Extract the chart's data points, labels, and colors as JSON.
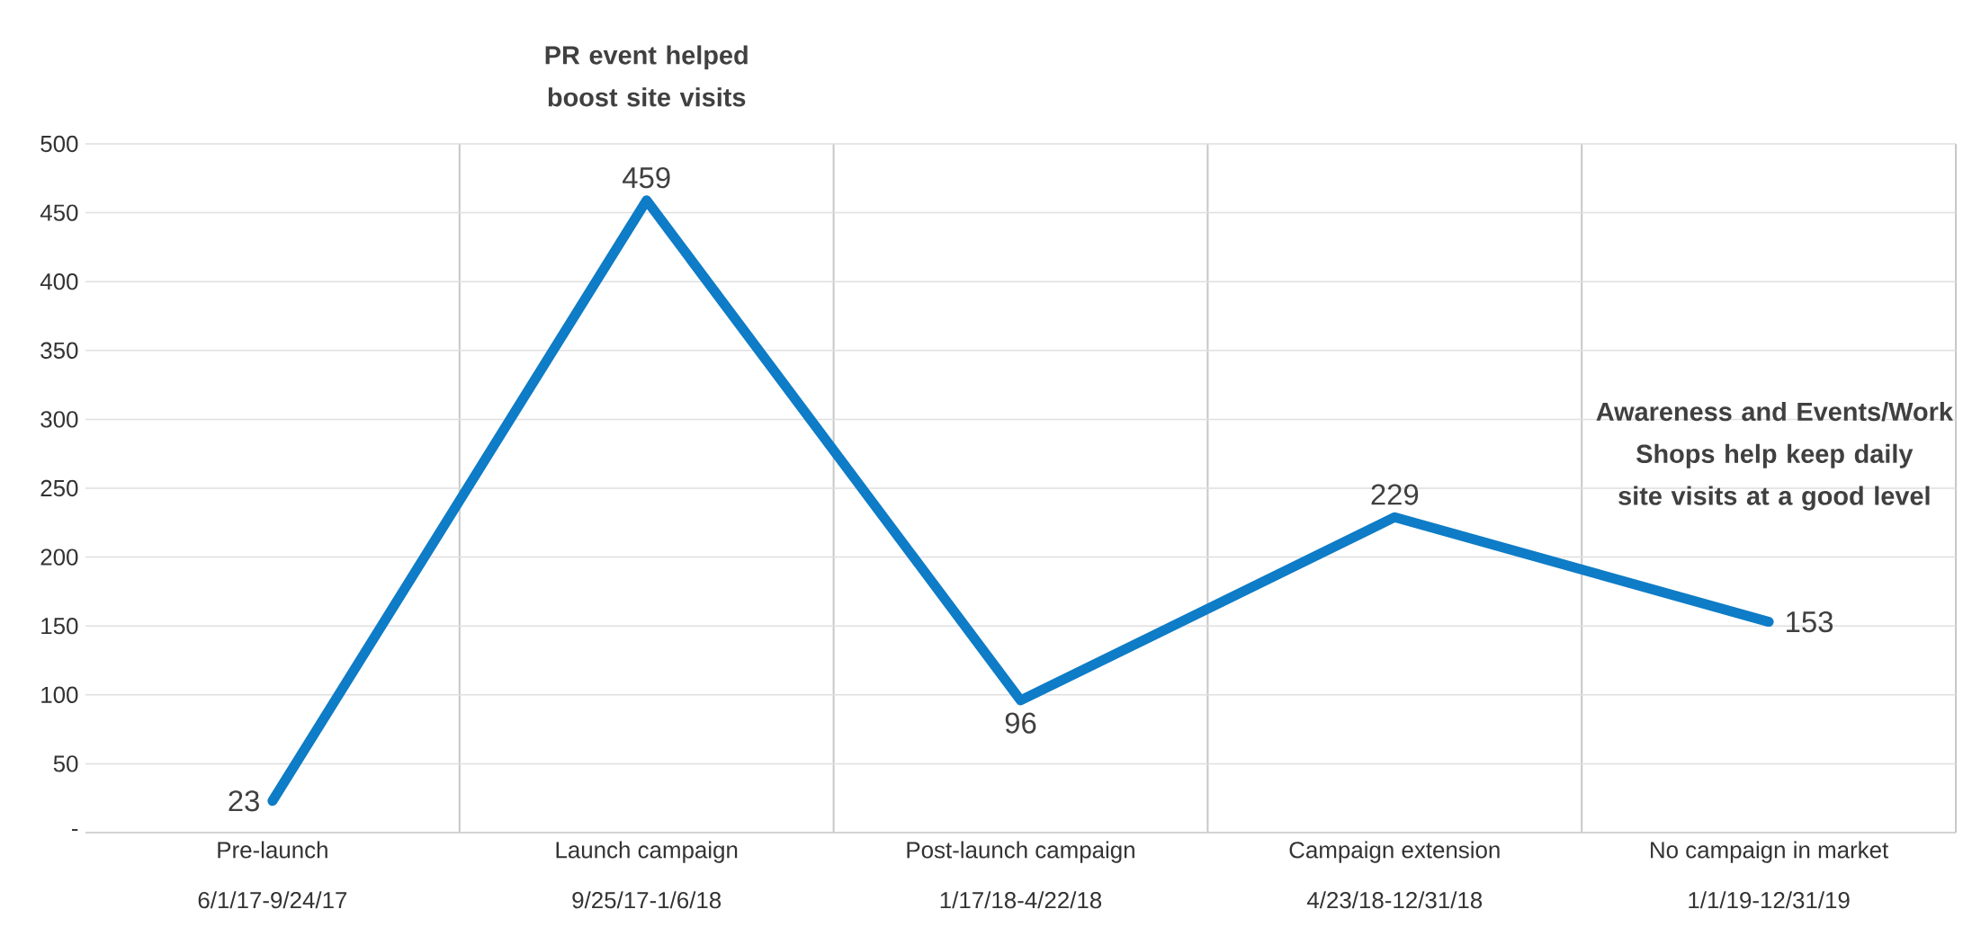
{
  "chart_data": {
    "type": "line",
    "categories": [
      "Pre-launch 6/1/17-9/24/17",
      "Launch campaign 9/25/17-1/6/18",
      "Post-launch campaign 1/17/18-4/22/18",
      "Campaign extension 4/23/18-12/31/18",
      "No campaign in market 1/1/19-12/31/19"
    ],
    "values": [
      23,
      459,
      96,
      229,
      153
    ],
    "color": "#0e7cc6",
    "data_labels": true,
    "ylim": [
      0,
      500
    ],
    "yticks": [
      {
        "value": 0,
        "label": "-"
      },
      50,
      100,
      150,
      200,
      250,
      300,
      350,
      400,
      450,
      500
    ],
    "grid": true,
    "marker": "none",
    "line_style": "solid",
    "annotations": [
      "PR event helped boost site visits",
      "Awareness and Events/Work Shops help keep daily site visits at a good level"
    ]
  }
}
